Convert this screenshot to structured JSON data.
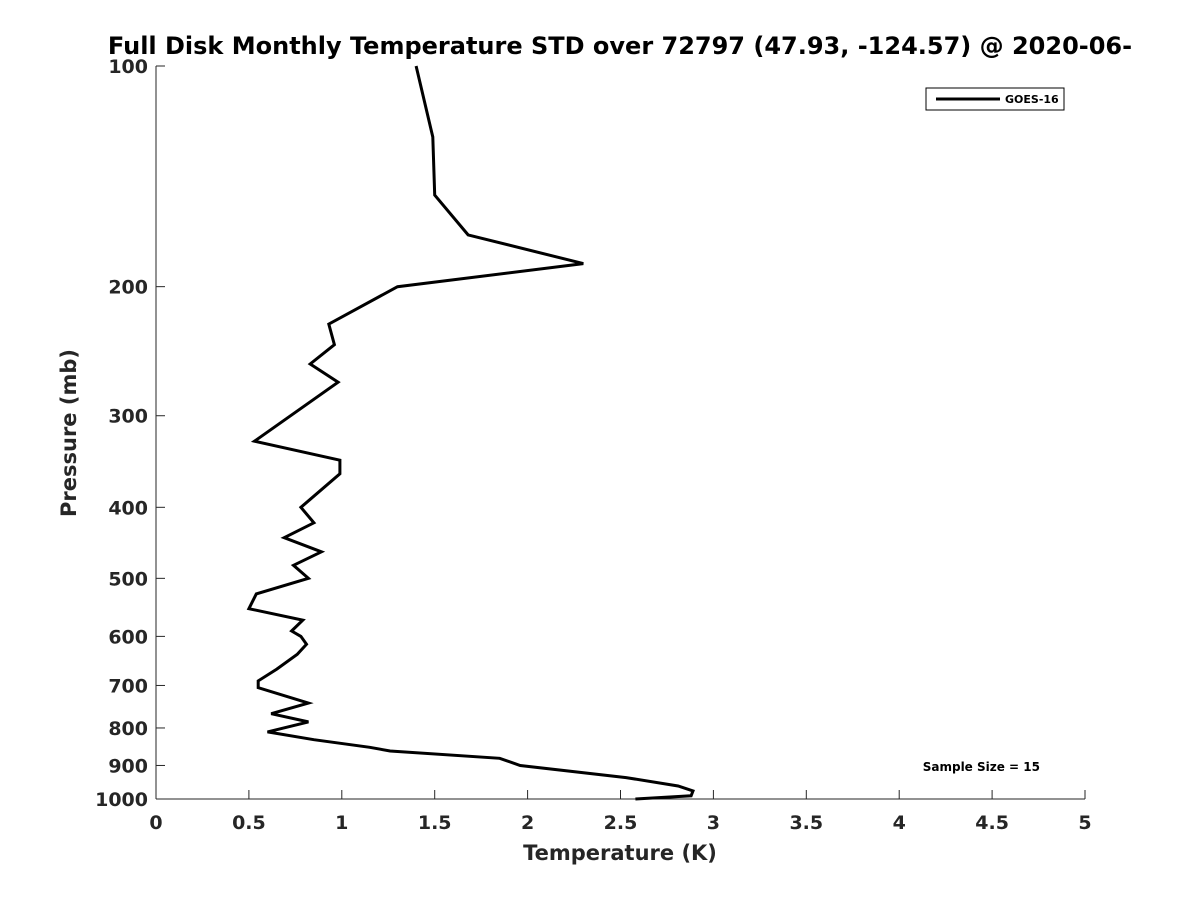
{
  "chart_data": {
    "type": "line",
    "title": "Full Disk Monthly Temperature STD over 72797 (47.93, -124.57) @ 2020-06-",
    "xlabel": "Temperature (K)",
    "ylabel": "Pressure (mb)",
    "xlim": [
      0,
      5
    ],
    "ylim": [
      100,
      1000
    ],
    "y_scale": "log",
    "y_reversed": true,
    "grid": false,
    "legend_position": "top-right",
    "x_ticks": [
      0,
      0.5,
      1,
      1.5,
      2,
      2.5,
      3,
      3.5,
      4,
      4.5,
      5
    ],
    "x_tick_labels": [
      "0",
      "0.5",
      "1",
      "1.5",
      "2",
      "2.5",
      "3",
      "3.5",
      "4",
      "4.5",
      "5"
    ],
    "y_ticks": [
      100,
      200,
      300,
      400,
      500,
      600,
      700,
      800,
      900,
      1000
    ],
    "y_tick_labels": [
      "100",
      "200",
      "300",
      "400",
      "500",
      "600",
      "700",
      "800",
      "900",
      "1000"
    ],
    "annotation": "Sample Size = 15",
    "series": [
      {
        "name": "GOES-16",
        "color": "#000000",
        "points": [
          [
            1.4,
            100
          ],
          [
            1.49,
            125
          ],
          [
            1.5,
            150
          ],
          [
            1.68,
            170
          ],
          [
            2.3,
            186
          ],
          [
            1.3,
            200
          ],
          [
            0.93,
            225
          ],
          [
            0.96,
            240
          ],
          [
            0.83,
            255
          ],
          [
            0.98,
            270
          ],
          [
            0.53,
            325
          ],
          [
            0.99,
            345
          ],
          [
            0.99,
            360
          ],
          [
            0.78,
            400
          ],
          [
            0.85,
            420
          ],
          [
            0.69,
            440
          ],
          [
            0.89,
            460
          ],
          [
            0.74,
            480
          ],
          [
            0.82,
            500
          ],
          [
            0.54,
            525
          ],
          [
            0.5,
            550
          ],
          [
            0.79,
            570
          ],
          [
            0.73,
            590
          ],
          [
            0.78,
            600
          ],
          [
            0.81,
            615
          ],
          [
            0.76,
            635
          ],
          [
            0.65,
            665
          ],
          [
            0.55,
            690
          ],
          [
            0.55,
            705
          ],
          [
            0.82,
            740
          ],
          [
            0.62,
            765
          ],
          [
            0.82,
            785
          ],
          [
            0.6,
            810
          ],
          [
            0.85,
            830
          ],
          [
            1.15,
            850
          ],
          [
            1.26,
            860
          ],
          [
            1.85,
            880
          ],
          [
            1.96,
            900
          ],
          [
            2.53,
            935
          ],
          [
            2.81,
            960
          ],
          [
            2.89,
            975
          ],
          [
            2.88,
            990
          ],
          [
            2.58,
            1000
          ]
        ]
      }
    ]
  }
}
